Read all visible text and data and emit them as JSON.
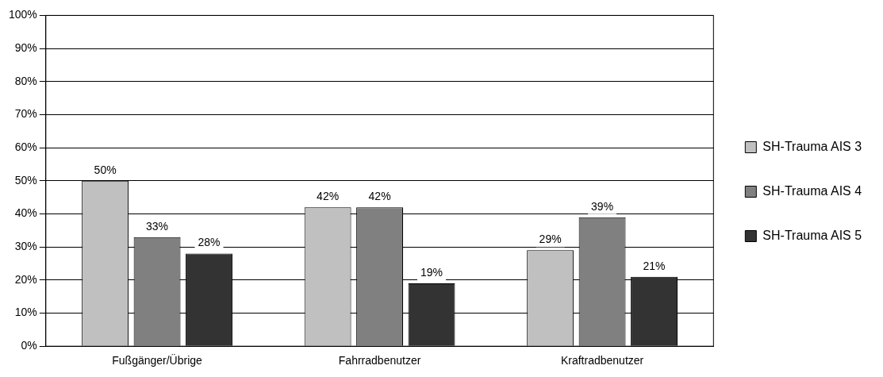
{
  "chart_data": {
    "type": "bar",
    "categories": [
      "Fußgänger/Übrige",
      "Fahrradbenutzer",
      "Kraftradbenutzer"
    ],
    "series": [
      {
        "name": "SH-Trauma AIS 3",
        "color": "#c0c0c0",
        "values": [
          50,
          42,
          29
        ],
        "value_labels": [
          "50%",
          "42%",
          "29%"
        ]
      },
      {
        "name": "SH-Trauma AIS 4",
        "color": "#808080",
        "values": [
          33,
          42,
          39
        ],
        "value_labels": [
          "33%",
          "42%",
          "39%"
        ]
      },
      {
        "name": "SH-Trauma AIS 5",
        "color": "#333333",
        "values": [
          28,
          19,
          21
        ],
        "value_labels": [
          "28%",
          "19%",
          "21%"
        ]
      }
    ],
    "ylim": [
      0,
      100
    ],
    "yticks": [
      {
        "value": 0,
        "label": "0%"
      },
      {
        "value": 10,
        "label": "10%"
      },
      {
        "value": 20,
        "label": "20%"
      },
      {
        "value": 30,
        "label": "30%"
      },
      {
        "value": 40,
        "label": "40%"
      },
      {
        "value": 50,
        "label": "50%"
      },
      {
        "value": 60,
        "label": "60%"
      },
      {
        "value": 70,
        "label": "70%"
      },
      {
        "value": 80,
        "label": "80%"
      },
      {
        "value": 90,
        "label": "90%"
      },
      {
        "value": 100,
        "label": "100%"
      }
    ],
    "grid": "y",
    "legend": "right"
  }
}
